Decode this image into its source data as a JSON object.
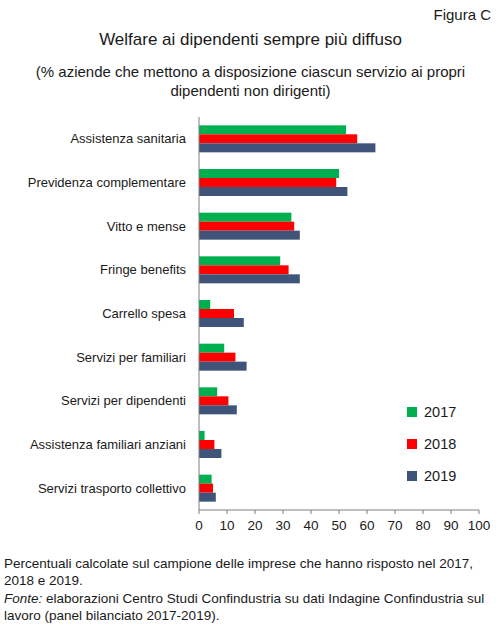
{
  "chart_data": {
    "type": "bar",
    "orientation": "horizontal",
    "figure_label": "Figura C",
    "title": "Welfare ai dipendenti sempre più diffuso",
    "subtitle": "(% aziende che mettono a disposizione ciascun servizio ai propri dipendenti non dirigenti)",
    "note": "Percentuali calcolate sul campione delle imprese che hanno risposto nel 2017, 2018 e 2019.",
    "source_label": "Fonte:",
    "source": "elaborazioni Centro Studi Confindustria su dati Indagine Confindustria sul lavoro (panel bilanciato 2017-2019).",
    "categories": [
      "Assistenza sanitaria",
      "Previdenza complementare",
      "Vitto e mense",
      "Fringe benefits",
      "Carrello spesa",
      "Servizi per familiari",
      "Servizi per dipendenti",
      "Assistenza familiari anziani",
      "Servizi trasporto collettivo"
    ],
    "series": [
      {
        "name": "2017",
        "color": "#00b050",
        "values": [
          52.5,
          50,
          33,
          29,
          4,
          9,
          6.5,
          2,
          4.5
        ]
      },
      {
        "name": "2018",
        "color": "#ff0000",
        "values": [
          56.5,
          49,
          34,
          32,
          12.5,
          13,
          10.5,
          5.5,
          5
        ]
      },
      {
        "name": "2019",
        "color": "#3f5478",
        "values": [
          63,
          53,
          36,
          36,
          16,
          17,
          13.5,
          8,
          6
        ]
      }
    ],
    "xlim": [
      0,
      100
    ],
    "xticks": [
      0,
      10,
      20,
      30,
      40,
      50,
      60,
      70,
      80,
      90,
      100
    ],
    "grid": false,
    "legend": "lower right"
  }
}
